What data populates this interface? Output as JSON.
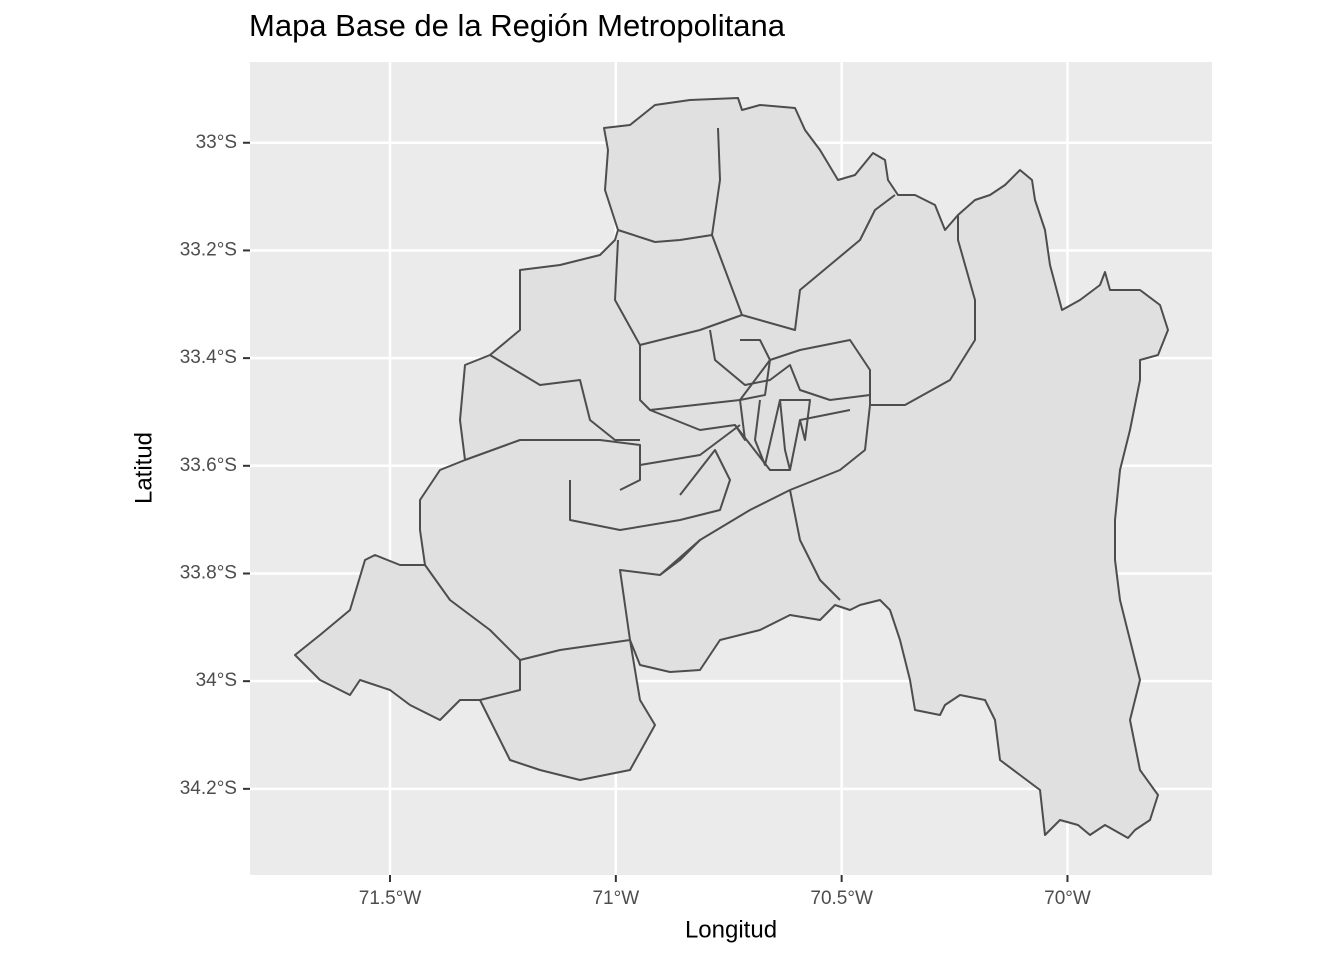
{
  "chart_data": {
    "type": "map",
    "title": "Mapa Base de la Región Metropolitana",
    "xlabel": "Longitud",
    "ylabel": "Latitud",
    "xlim": [
      -71.81,
      -69.68
    ],
    "ylim": [
      -34.36,
      -32.85
    ],
    "xticks": [
      {
        "value": -71.5,
        "label": "71.5°W"
      },
      {
        "value": -71,
        "label": "71°W"
      },
      {
        "value": -70.5,
        "label": "70.5°W"
      },
      {
        "value": -70,
        "label": "70°W"
      }
    ],
    "yticks": [
      {
        "value": -33,
        "label": "33°S"
      },
      {
        "value": -33.2,
        "label": "33.2°S"
      },
      {
        "value": -33.4,
        "label": "33.4°S"
      },
      {
        "value": -33.6,
        "label": "33.6°S"
      },
      {
        "value": -33.8,
        "label": "33.8°S"
      },
      {
        "value": -34,
        "label": "34°S"
      },
      {
        "value": -34.2,
        "label": "34.2°S"
      }
    ],
    "grid": true
  }
}
